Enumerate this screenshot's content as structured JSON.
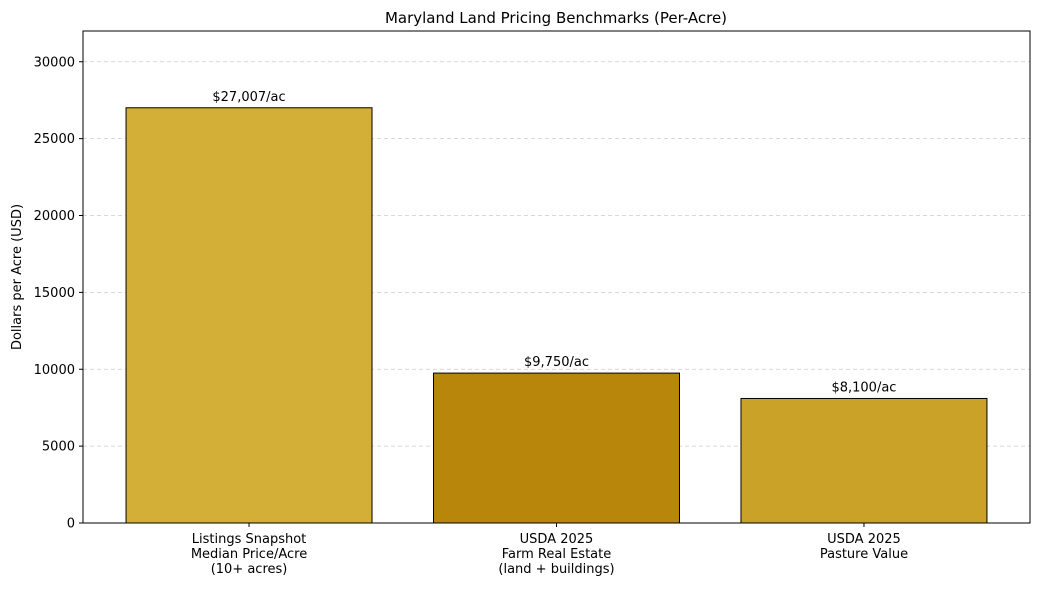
{
  "chart_data": {
    "type": "bar",
    "title": "Maryland Land Pricing Benchmarks (Per-Acre)",
    "ylabel": "Dollars per Acre (USD)",
    "categories": [
      [
        "Listings Snapshot",
        "Median Price/Acre",
        "(10+ acres)"
      ],
      [
        "USDA 2025",
        "Farm Real Estate",
        "(land + buildings)"
      ],
      [
        "USDA 2025",
        "Pasture Value"
      ]
    ],
    "values": [
      27007,
      9750,
      8100
    ],
    "value_labels": [
      "$27,007/ac",
      "$9,750/ac",
      "$8,100/ac"
    ],
    "colors": [
      "#d4af37",
      "#b8860b",
      "#c9a227"
    ],
    "ylim": [
      0,
      32000
    ],
    "yticks": [
      0,
      5000,
      10000,
      15000,
      20000,
      25000,
      30000
    ],
    "grid": true
  }
}
